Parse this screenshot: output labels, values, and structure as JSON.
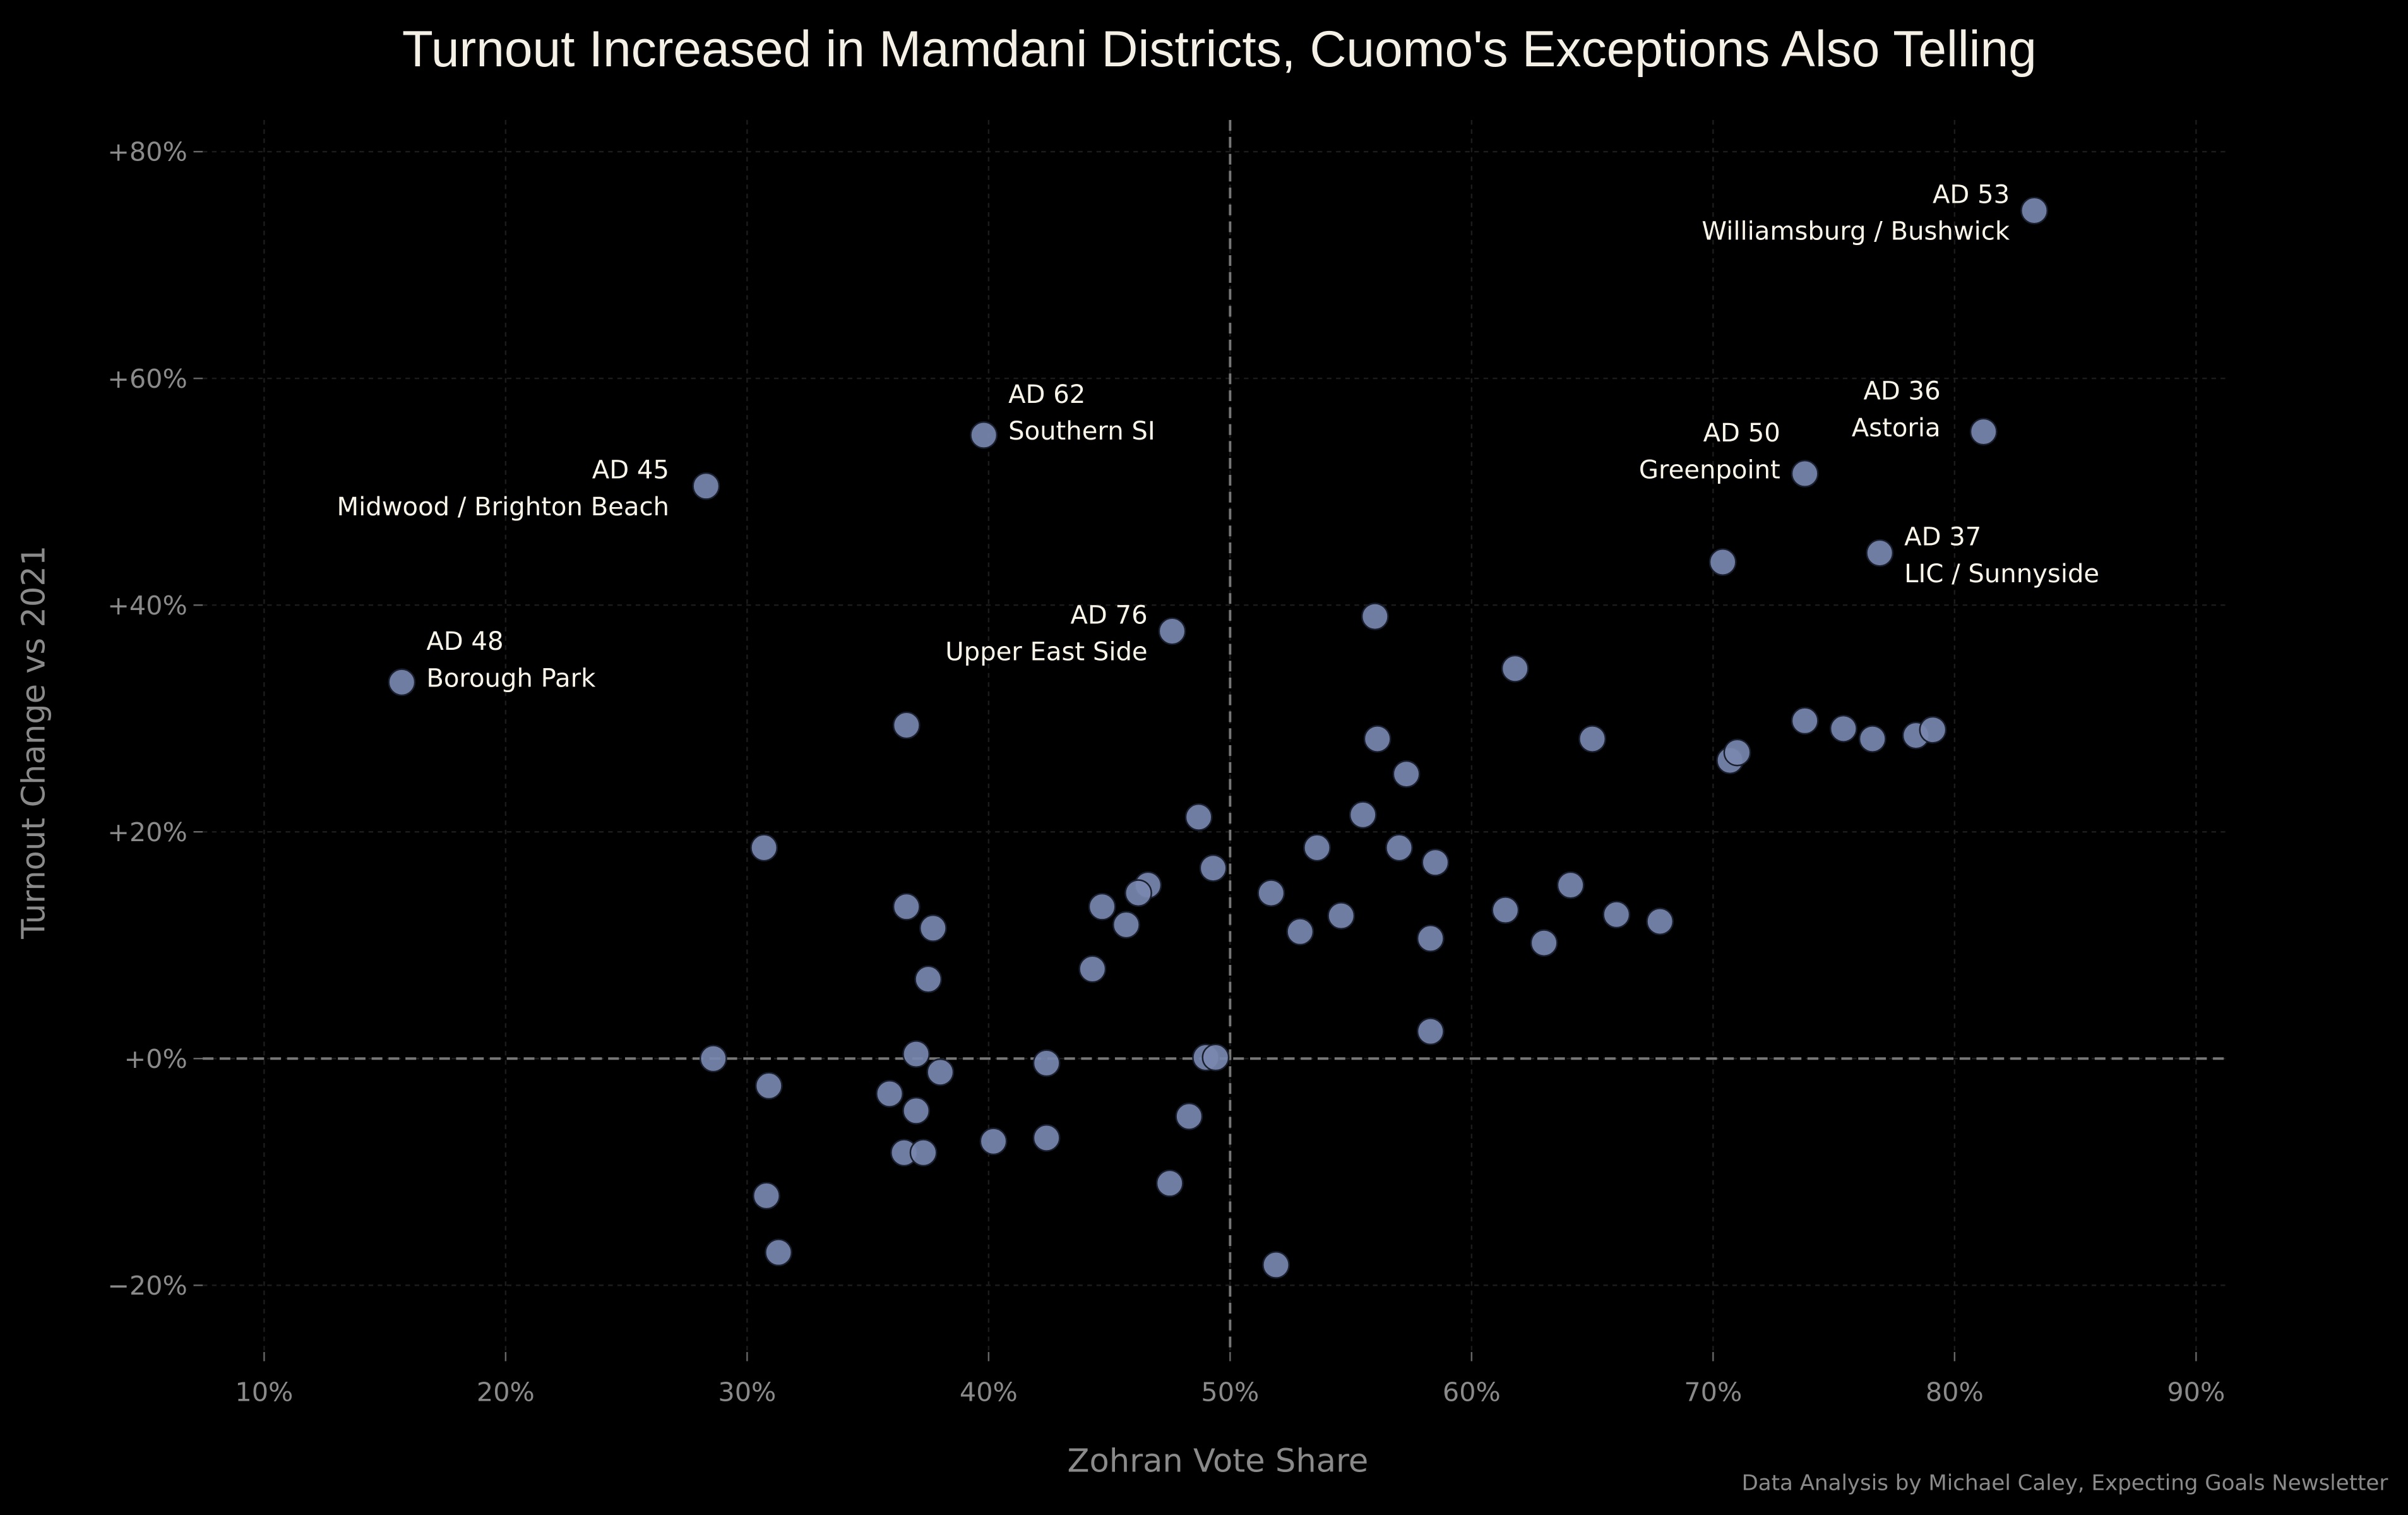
{
  "chart_data": {
    "type": "scatter",
    "title": "Turnout Increased in Mamdani Districts, Cuomo's Exceptions Also Telling",
    "xlabel": "Zohran Vote Share",
    "ylabel": "Turnout Change vs 2021",
    "credit": "Data Analysis by Michael Caley, Expecting Goals Newsletter",
    "xlim": [
      7.5,
      91.5
    ],
    "ylim": [
      -26,
      83
    ],
    "xticks": [
      10,
      20,
      30,
      40,
      50,
      60,
      70,
      80,
      90
    ],
    "xtick_labels": [
      "10%",
      "20%",
      "30%",
      "40%",
      "50%",
      "60%",
      "70%",
      "80%",
      "90%"
    ],
    "yticks": [
      -20,
      0,
      20,
      40,
      60,
      80
    ],
    "ytick_labels": [
      "−20%",
      "+0%",
      "+20%",
      "+40%",
      "+60%",
      "+80%"
    ],
    "grid": true,
    "reference_lines": {
      "x": 50,
      "y": 0
    },
    "point_color": "#7a88b0",
    "points": [
      [
        83.3,
        74.8
      ],
      [
        81.2,
        55.3
      ],
      [
        73.8,
        51.6
      ],
      [
        76.9,
        44.6
      ],
      [
        70.4,
        43.8
      ],
      [
        39.8,
        55.0
      ],
      [
        28.3,
        50.5
      ],
      [
        15.7,
        33.2
      ],
      [
        47.6,
        37.7
      ],
      [
        56.0,
        39.0
      ],
      [
        61.8,
        34.4
      ],
      [
        36.6,
        29.4
      ],
      [
        73.8,
        29.8
      ],
      [
        75.4,
        29.1
      ],
      [
        76.6,
        28.2
      ],
      [
        78.4,
        28.5
      ],
      [
        79.1,
        29.0
      ],
      [
        65.0,
        28.2
      ],
      [
        56.1,
        28.2
      ],
      [
        57.3,
        25.1
      ],
      [
        70.7,
        26.3
      ],
      [
        71.0,
        27.0
      ],
      [
        48.7,
        21.3
      ],
      [
        55.5,
        21.5
      ],
      [
        30.7,
        18.6
      ],
      [
        53.6,
        18.6
      ],
      [
        57.0,
        18.6
      ],
      [
        58.5,
        17.3
      ],
      [
        49.3,
        16.8
      ],
      [
        51.7,
        14.6
      ],
      [
        46.6,
        15.3
      ],
      [
        46.2,
        14.6
      ],
      [
        44.7,
        13.4
      ],
      [
        45.7,
        11.8
      ],
      [
        36.6,
        13.4
      ],
      [
        37.7,
        11.5
      ],
      [
        37.5,
        7.0
      ],
      [
        44.3,
        7.9
      ],
      [
        52.9,
        11.2
      ],
      [
        54.6,
        12.6
      ],
      [
        58.3,
        10.6
      ],
      [
        61.4,
        13.1
      ],
      [
        64.1,
        15.3
      ],
      [
        63.0,
        10.2
      ],
      [
        66.0,
        12.7
      ],
      [
        67.8,
        12.1
      ],
      [
        58.3,
        2.4
      ],
      [
        28.6,
        0.0
      ],
      [
        37.0,
        0.4
      ],
      [
        42.4,
        -0.4
      ],
      [
        49.0,
        0.1
      ],
      [
        49.4,
        0.1
      ],
      [
        30.9,
        -2.4
      ],
      [
        38.0,
        -1.2
      ],
      [
        35.9,
        -3.1
      ],
      [
        37.0,
        -4.6
      ],
      [
        48.3,
        -5.1
      ],
      [
        36.5,
        -8.3
      ],
      [
        37.3,
        -8.3
      ],
      [
        40.2,
        -7.3
      ],
      [
        42.4,
        -7.0
      ],
      [
        47.5,
        -11.0
      ],
      [
        30.8,
        -12.1
      ],
      [
        31.3,
        -17.1
      ],
      [
        51.9,
        -18.2
      ]
    ],
    "annotations": [
      {
        "district": "AD 53",
        "area": "Williamsburg / Bushwick",
        "point": 0
      },
      {
        "district": "AD 36",
        "area": "Astoria",
        "point": 1
      },
      {
        "district": "AD 50",
        "area": "Greenpoint",
        "point": 2
      },
      {
        "district": "AD 37",
        "area": "LIC / Sunnyside",
        "point": 3
      },
      {
        "district": "AD 62",
        "area": "Southern SI",
        "point": 5
      },
      {
        "district": "AD 45",
        "area": "Midwood / Brighton Beach",
        "point": 6
      },
      {
        "district": "AD 48",
        "area": "Borough Park",
        "point": 7
      },
      {
        "district": "AD 76",
        "area": "Upper East Side",
        "point": 8
      }
    ]
  }
}
